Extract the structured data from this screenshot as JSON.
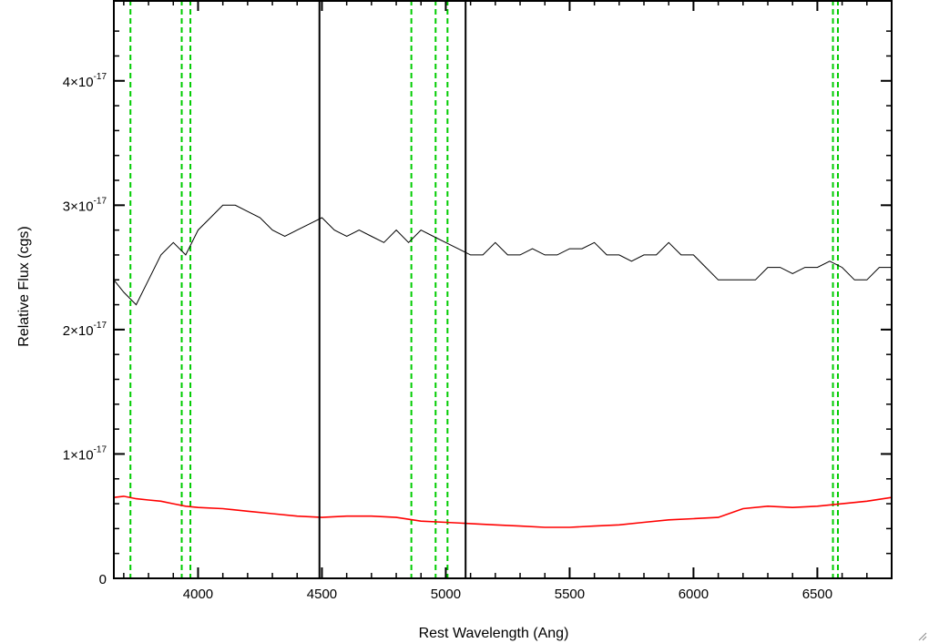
{
  "chart_data": {
    "type": "line",
    "xlabel": "Rest Wavelength (Ang)",
    "ylabel": "Relative Flux (cgs)",
    "xlim": [
      3660,
      6800
    ],
    "ylim": [
      0,
      4.65e-17
    ],
    "x_ticks": [
      4000,
      4500,
      5000,
      5500,
      6000,
      6500
    ],
    "y_ticks": [
      {
        "value": 0,
        "mantissa": "0",
        "exponent": ""
      },
      {
        "value": 1e-17,
        "mantissa": "1×10",
        "exponent": "-17"
      },
      {
        "value": 2e-17,
        "mantissa": "2×10",
        "exponent": "-17"
      },
      {
        "value": 3e-17,
        "mantissa": "3×10",
        "exponent": "-17"
      },
      {
        "value": 4e-17,
        "mantissa": "4×10",
        "exponent": "-17"
      }
    ],
    "colors": {
      "observed": "#000000",
      "model": "#ff0000",
      "lines": "#00cc00"
    },
    "reference_lines_green_dashed": [
      3727,
      3934,
      3969,
      4861,
      4959,
      5007,
      6563,
      6583
    ],
    "solid_black_vlines": [
      4490,
      5080
    ],
    "series": [
      {
        "color": "#000000",
        "x": [
          3660,
          3700,
          3750,
          3800,
          3850,
          3900,
          3950,
          4000,
          4050,
          4100,
          4150,
          4200,
          4250,
          4300,
          4350,
          4400,
          4450,
          4500,
          4550,
          4600,
          4650,
          4700,
          4750,
          4800,
          4850,
          4900,
          4950,
          5000,
          5050,
          5100,
          5150,
          5200,
          5250,
          5300,
          5350,
          5400,
          5450,
          5500,
          5550,
          5600,
          5650,
          5700,
          5750,
          5800,
          5850,
          5900,
          5950,
          6000,
          6050,
          6100,
          6150,
          6200,
          6250,
          6300,
          6350,
          6400,
          6450,
          6500,
          6550,
          6600,
          6650,
          6700,
          6750,
          6800
        ],
        "y": [
          2.4e-17,
          2.3e-17,
          2.2e-17,
          2.4e-17,
          2.6e-17,
          2.7e-17,
          2.6e-17,
          2.8e-17,
          2.9e-17,
          3e-17,
          3e-17,
          2.95e-17,
          2.9e-17,
          2.8e-17,
          2.75e-17,
          2.8e-17,
          2.85e-17,
          2.9e-17,
          2.8e-17,
          2.75e-17,
          2.8e-17,
          2.75e-17,
          2.7e-17,
          2.8e-17,
          2.7e-17,
          2.8e-17,
          2.75e-17,
          2.7e-17,
          2.65e-17,
          2.6e-17,
          2.6e-17,
          2.7e-17,
          2.6e-17,
          2.6e-17,
          2.65e-17,
          2.6e-17,
          2.6e-17,
          2.65e-17,
          2.65e-17,
          2.7e-17,
          2.6e-17,
          2.6e-17,
          2.55e-17,
          2.6e-17,
          2.6e-17,
          2.7e-17,
          2.6e-17,
          2.6e-17,
          2.5e-17,
          2.4e-17,
          2.4e-17,
          2.4e-17,
          2.4e-17,
          2.5e-17,
          2.5e-17,
          2.45e-17,
          2.5e-17,
          2.5e-17,
          2.55e-17,
          2.5e-17,
          2.4e-17,
          2.4e-17,
          2.5e-17,
          2.5e-17
        ]
      },
      {
        "color": "#ff0000",
        "x": [
          3660,
          3700,
          3750,
          3800,
          3850,
          3900,
          3950,
          4000,
          4100,
          4200,
          4300,
          4400,
          4500,
          4600,
          4700,
          4800,
          4900,
          5000,
          5100,
          5200,
          5300,
          5400,
          5500,
          5600,
          5700,
          5800,
          5900,
          6000,
          6100,
          6200,
          6300,
          6400,
          6500,
          6600,
          6700,
          6800
        ],
        "y": [
          6.5e-18,
          6.6e-18,
          6.4e-18,
          6.3e-18,
          6.2e-18,
          6e-18,
          5.8e-18,
          5.7e-18,
          5.6e-18,
          5.4e-18,
          5.2e-18,
          5e-18,
          4.9e-18,
          5e-18,
          5e-18,
          4.9e-18,
          4.6e-18,
          4.5e-18,
          4.4e-18,
          4.3e-18,
          4.2e-18,
          4.1e-18,
          4.1e-18,
          4.2e-18,
          4.3e-18,
          4.5e-18,
          4.7e-18,
          4.8e-18,
          4.9e-18,
          5.6e-18,
          5.8e-18,
          5.7e-18,
          5.8e-18,
          6e-18,
          6.2e-18,
          6.5e-18
        ]
      }
    ]
  }
}
